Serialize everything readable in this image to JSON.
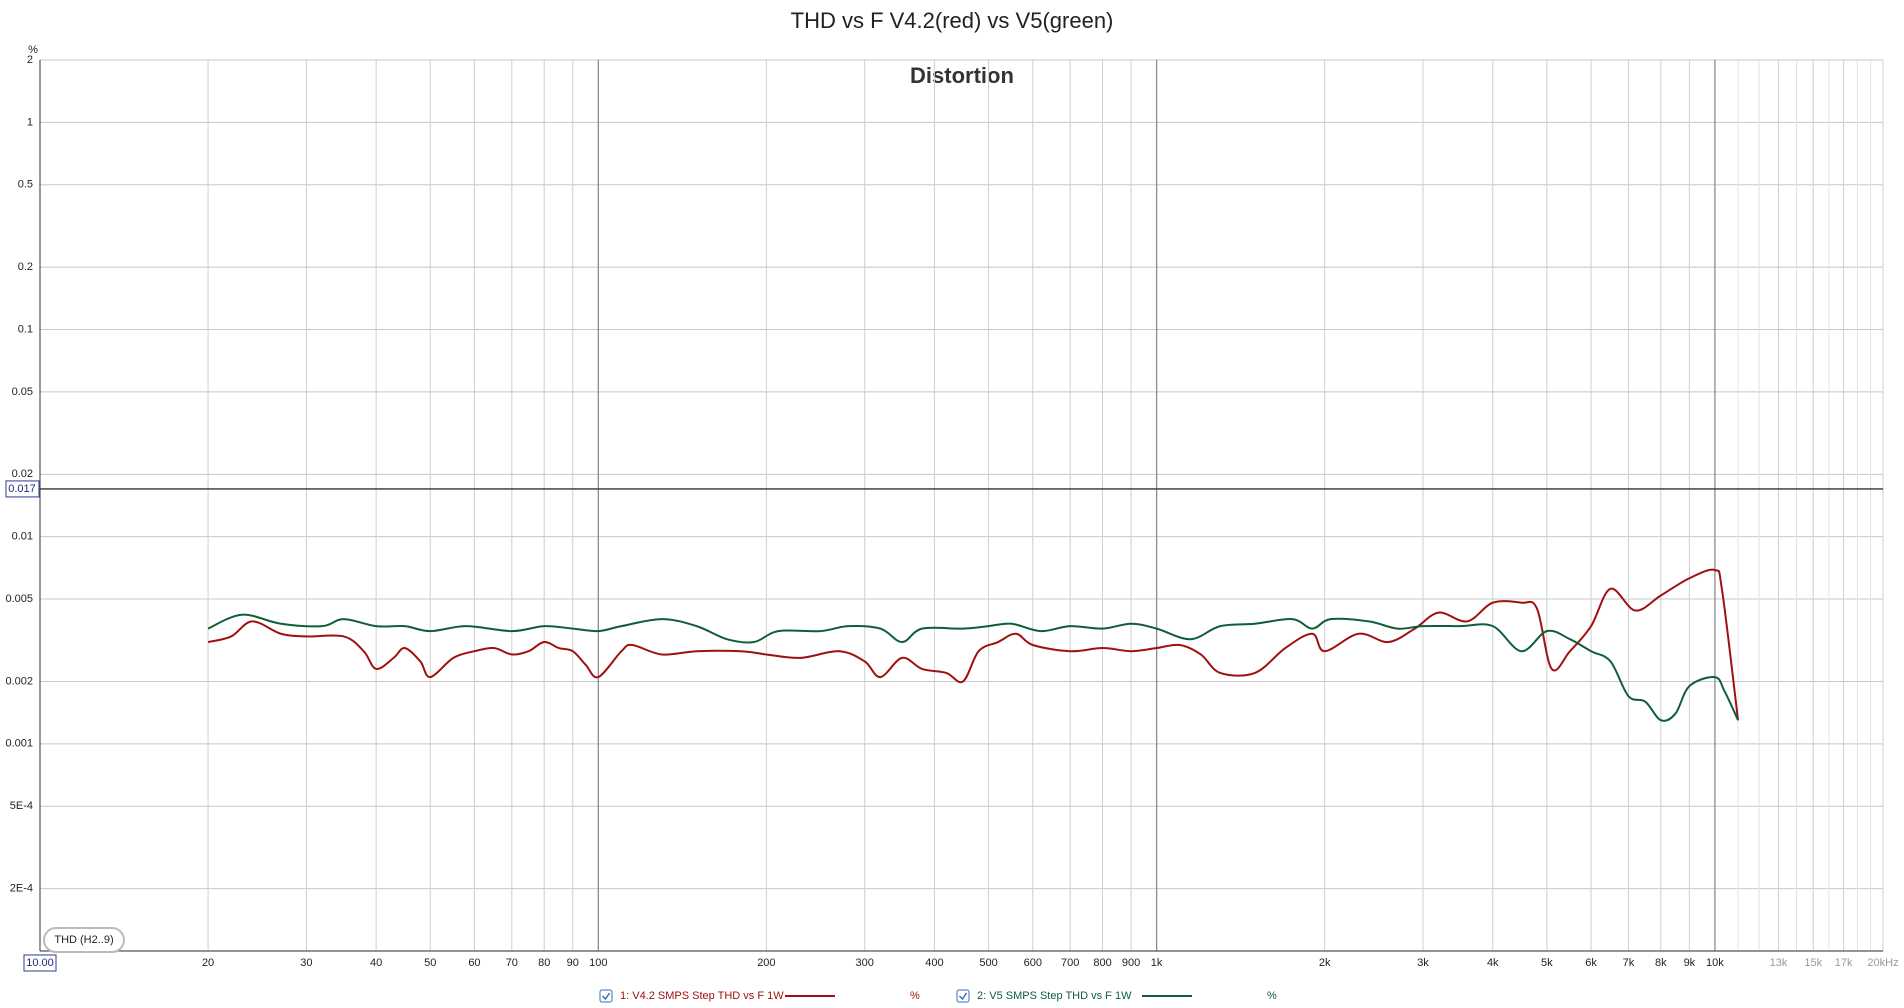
{
  "chart_data": {
    "type": "line",
    "title": "THD vs F V4.2(red) vs V5(green)",
    "subtitle": "Distortion",
    "y_unit": "%",
    "measurement_button": "THD (H2..9)",
    "log_x": true,
    "log_y": true,
    "grid": true,
    "xlim": [
      10,
      20000
    ],
    "ylim": [
      0.0001,
      2
    ],
    "xticks": [
      20,
      30,
      40,
      50,
      60,
      70,
      80,
      90,
      100,
      200,
      300,
      400,
      500,
      600,
      700,
      800,
      900,
      {
        "value": 1000,
        "label": "1k"
      },
      {
        "value": 2000,
        "label": "2k"
      },
      {
        "value": 3000,
        "label": "3k"
      },
      {
        "value": 4000,
        "label": "4k"
      },
      {
        "value": 5000,
        "label": "5k"
      },
      {
        "value": 6000,
        "label": "6k"
      },
      {
        "value": 7000,
        "label": "7k"
      },
      {
        "value": 8000,
        "label": "8k"
      },
      {
        "value": 9000,
        "label": "9k"
      },
      {
        "value": 10000,
        "label": "10k"
      },
      {
        "value": 13000,
        "label": "13k"
      },
      {
        "value": 15000,
        "label": "15k"
      },
      {
        "value": 17000,
        "label": "17k"
      },
      {
        "value": 20000,
        "label": "20kHz"
      }
    ],
    "xminor": [
      11000,
      12000,
      14000,
      16000,
      18000,
      19000
    ],
    "yticks": [
      2,
      1,
      0.5,
      0.2,
      0.1,
      0.05,
      0.02,
      0.01,
      0.005,
      0.002,
      0.001,
      {
        "value": 0.0005,
        "label": "5E-4"
      },
      {
        "value": 0.0002,
        "label": "2E-4"
      }
    ],
    "cursor": {
      "y": 0.017,
      "x": {
        "value": 10,
        "label": "10.00"
      }
    },
    "series": [
      {
        "name": "1: V4.2 SMPS Step THD vs F 1W",
        "unit": "%",
        "color": "#a01010",
        "x": [
          20,
          22,
          24,
          27,
          30,
          35,
          38,
          40,
          43,
          45,
          48,
          50,
          55,
          60,
          65,
          70,
          75,
          80,
          85,
          90,
          95,
          100,
          110,
          115,
          130,
          150,
          180,
          200,
          230,
          270,
          300,
          320,
          350,
          380,
          420,
          450,
          480,
          520,
          560,
          600,
          700,
          800,
          900,
          1000,
          1100,
          1200,
          1300,
          1500,
          1700,
          1900,
          2000,
          2300,
          2600,
          2900,
          3200,
          3600,
          4000,
          4500,
          4800,
          5100,
          5500,
          6000,
          6500,
          7200,
          8000,
          9000,
          10000,
          10300,
          11000
        ],
        "values": [
          0.0031,
          0.0033,
          0.0039,
          0.0034,
          0.0033,
          0.0033,
          0.0028,
          0.0023,
          0.0026,
          0.0029,
          0.0025,
          0.0021,
          0.0026,
          0.0028,
          0.0029,
          0.0027,
          0.0028,
          0.0031,
          0.0029,
          0.0028,
          0.0024,
          0.0021,
          0.0028,
          0.003,
          0.0027,
          0.0028,
          0.0028,
          0.0027,
          0.0026,
          0.0028,
          0.0025,
          0.0021,
          0.0026,
          0.0023,
          0.0022,
          0.002,
          0.0028,
          0.0031,
          0.0034,
          0.003,
          0.0028,
          0.0029,
          0.0028,
          0.0029,
          0.003,
          0.0027,
          0.0022,
          0.0022,
          0.0029,
          0.0034,
          0.0028,
          0.0034,
          0.0031,
          0.0036,
          0.0043,
          0.0039,
          0.0048,
          0.0048,
          0.0045,
          0.0023,
          0.0028,
          0.0037,
          0.0056,
          0.0044,
          0.0052,
          0.0063,
          0.0069,
          0.0055,
          0.0013
        ]
      },
      {
        "name": "2: V5 SMPS  Step THD vs F 1W",
        "unit": "%",
        "color": "#0f5e3a",
        "x": [
          20,
          23,
          27,
          32,
          35,
          40,
          45,
          50,
          58,
          70,
          80,
          90,
          100,
          110,
          130,
          150,
          170,
          190,
          210,
          250,
          280,
          320,
          350,
          380,
          450,
          500,
          550,
          620,
          700,
          800,
          900,
          1000,
          1150,
          1300,
          1500,
          1750,
          1900,
          2050,
          2400,
          2700,
          3000,
          3500,
          4000,
          4500,
          5000,
          5500,
          6000,
          6500,
          7000,
          7500,
          8000,
          8500,
          9000,
          10000,
          10400,
          11000
        ],
        "values": [
          0.0036,
          0.0042,
          0.0038,
          0.0037,
          0.004,
          0.0037,
          0.0037,
          0.0035,
          0.0037,
          0.0035,
          0.0037,
          0.0036,
          0.0035,
          0.0037,
          0.004,
          0.0037,
          0.0032,
          0.0031,
          0.0035,
          0.0035,
          0.0037,
          0.0036,
          0.0031,
          0.0036,
          0.0036,
          0.0037,
          0.0038,
          0.0035,
          0.0037,
          0.0036,
          0.0038,
          0.0036,
          0.0032,
          0.0037,
          0.0038,
          0.004,
          0.0036,
          0.004,
          0.0039,
          0.0036,
          0.0037,
          0.0037,
          0.0037,
          0.0028,
          0.0035,
          0.0032,
          0.0028,
          0.0025,
          0.0017,
          0.0016,
          0.0013,
          0.0014,
          0.0019,
          0.0021,
          0.0018,
          0.0013
        ]
      }
    ]
  }
}
